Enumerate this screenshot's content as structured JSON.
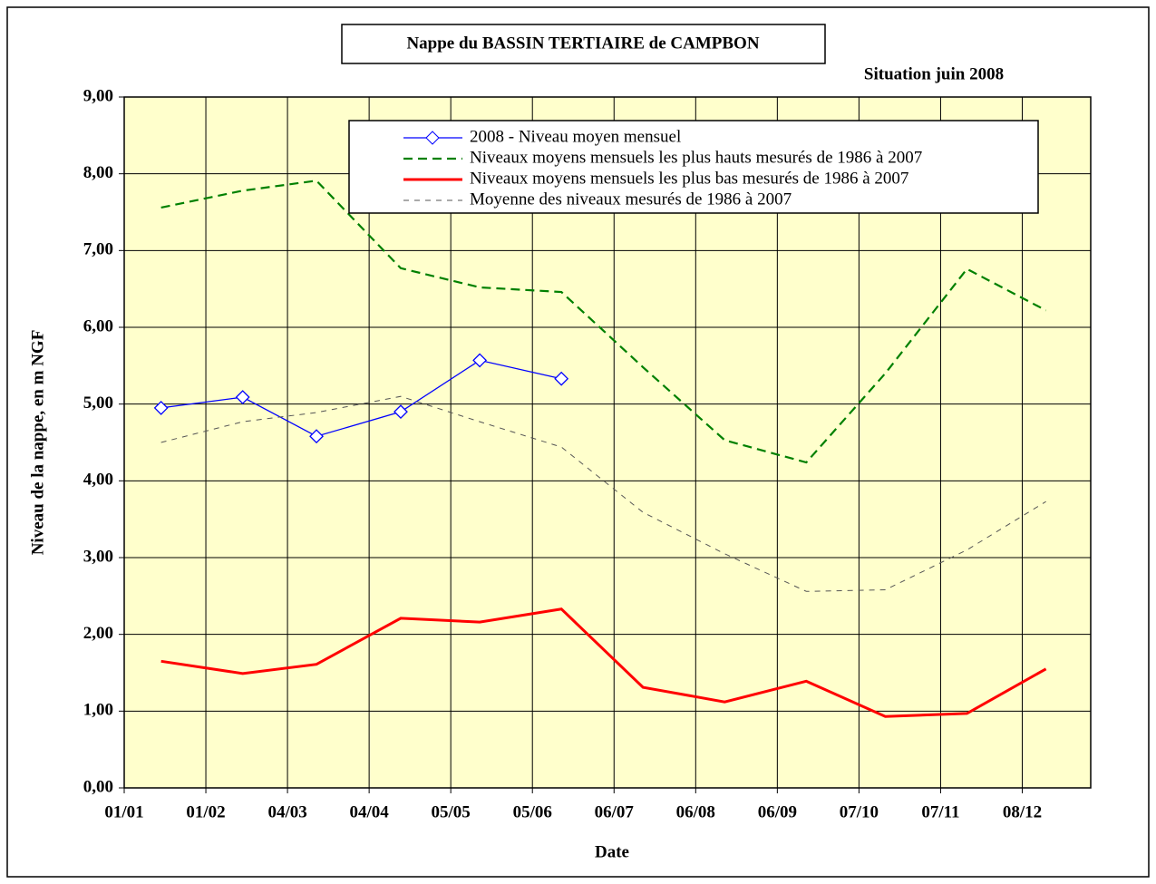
{
  "chart_data": {
    "type": "line",
    "title": "Nappe du BASSIN TERTIAIRE de CAMPBON",
    "subtitle": "Situation juin 2008",
    "x_label": "Date",
    "y_label": "Niveau de la nappe, en m NGF",
    "x": [
      14,
      45,
      73,
      105,
      135,
      166,
      197,
      228,
      259,
      289,
      320,
      350
    ],
    "series": [
      {
        "name": "2008 - Niveau moyen mensuel",
        "color": "#0000ff",
        "dash": "none",
        "width": 1.3,
        "marker": "diamond",
        "values": [
          4.95,
          5.09,
          4.58,
          4.9,
          5.57,
          5.33,
          null,
          null,
          null,
          null,
          null,
          null
        ]
      },
      {
        "name": "Niveaux moyens mensuels les plus hauts mesurés de 1986 à 2007",
        "color": "#008000",
        "dash": "10,6",
        "width": 2.2,
        "values": [
          7.56,
          7.78,
          7.91,
          6.77,
          6.52,
          6.46,
          5.48,
          4.53,
          4.24,
          5.4,
          6.76,
          6.22
        ]
      },
      {
        "name": "Niveaux moyens mensuels les plus bas mesurés de 1986 à 2007",
        "color": "#ff0000",
        "dash": "none",
        "width": 3,
        "values": [
          1.65,
          1.49,
          1.61,
          2.21,
          2.16,
          2.33,
          1.31,
          1.12,
          1.39,
          0.93,
          0.97,
          1.55
        ]
      },
      {
        "name": "Moyenne des niveaux mesurés de 1986 à 2007",
        "color": "#555555",
        "dash": "6,6",
        "width": 1,
        "values": [
          4.5,
          4.77,
          4.89,
          5.1,
          4.77,
          4.44,
          3.59,
          3.05,
          2.56,
          2.58,
          3.1,
          3.73
        ]
      }
    ],
    "xlim": [
      0,
      367
    ],
    "xticks": [
      {
        "value": 0,
        "label": "01/01"
      },
      {
        "value": 31,
        "label": "01/02"
      },
      {
        "value": 62,
        "label": "04/03"
      },
      {
        "value": 93,
        "label": "04/04"
      },
      {
        "value": 124,
        "label": "05/05"
      },
      {
        "value": 155,
        "label": "05/06"
      },
      {
        "value": 186,
        "label": "06/07"
      },
      {
        "value": 217,
        "label": "06/08"
      },
      {
        "value": 248,
        "label": "06/09"
      },
      {
        "value": 279,
        "label": "07/10"
      },
      {
        "value": 310,
        "label": "07/11"
      },
      {
        "value": 341,
        "label": "08/12"
      }
    ],
    "ylim": [
      0,
      9
    ],
    "yticks": [
      {
        "value": 0,
        "label": "0,00"
      },
      {
        "value": 1,
        "label": "1,00"
      },
      {
        "value": 2,
        "label": "2,00"
      },
      {
        "value": 3,
        "label": "3,00"
      },
      {
        "value": 4,
        "label": "4,00"
      },
      {
        "value": 5,
        "label": "5,00"
      },
      {
        "value": 6,
        "label": "6,00"
      },
      {
        "value": 7,
        "label": "7,00"
      },
      {
        "value": 8,
        "label": "8,00"
      },
      {
        "value": 9,
        "label": "9,00"
      }
    ],
    "grid": true,
    "background": "#ffffcc"
  }
}
